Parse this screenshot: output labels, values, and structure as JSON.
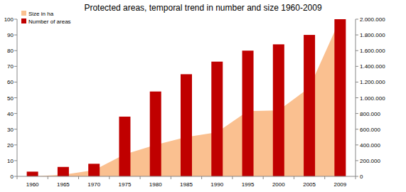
{
  "chart_data": {
    "type": "bar",
    "title": "Protected areas, temporal trend in number and size  1960-2009",
    "categories": [
      "1960",
      "1965",
      "1970",
      "1975",
      "1980",
      "1985",
      "1990",
      "1995",
      "2000",
      "2005",
      "2009"
    ],
    "series": [
      {
        "name": "Size in ha",
        "type": "area",
        "axis": "y2",
        "color": "#fac090",
        "values": [
          0,
          20000,
          80000,
          280000,
          400000,
          500000,
          560000,
          830000,
          840000,
          1130000,
          2000000
        ]
      },
      {
        "name": "Number of areas",
        "type": "bar",
        "color": "#c00000",
        "values": [
          3,
          6,
          8,
          38,
          54,
          65,
          73,
          80,
          84,
          90,
          100
        ]
      }
    ],
    "ylim": [
      0,
      100
    ],
    "yticks": [
      0,
      10,
      20,
      30,
      40,
      50,
      60,
      70,
      80,
      90,
      100
    ],
    "y2lim": [
      0,
      2000000
    ],
    "y2ticks": [
      {
        "value": 0,
        "label": "0"
      },
      {
        "value": 200000,
        "label": "200.000"
      },
      {
        "value": 400000,
        "label": "400.000"
      },
      {
        "value": 600000,
        "label": "600.000"
      },
      {
        "value": 800000,
        "label": "800.000"
      },
      {
        "value": 1000000,
        "label": "1.000.000"
      },
      {
        "value": 1200000,
        "label": "1.200.000"
      },
      {
        "value": 1400000,
        "label": "1.400.000"
      },
      {
        "value": 1600000,
        "label": "1.600.000"
      },
      {
        "value": 1800000,
        "label": "1.800.000"
      },
      {
        "value": 2000000,
        "label": "2.000.000"
      }
    ],
    "grid": false,
    "legend": "upper left"
  }
}
